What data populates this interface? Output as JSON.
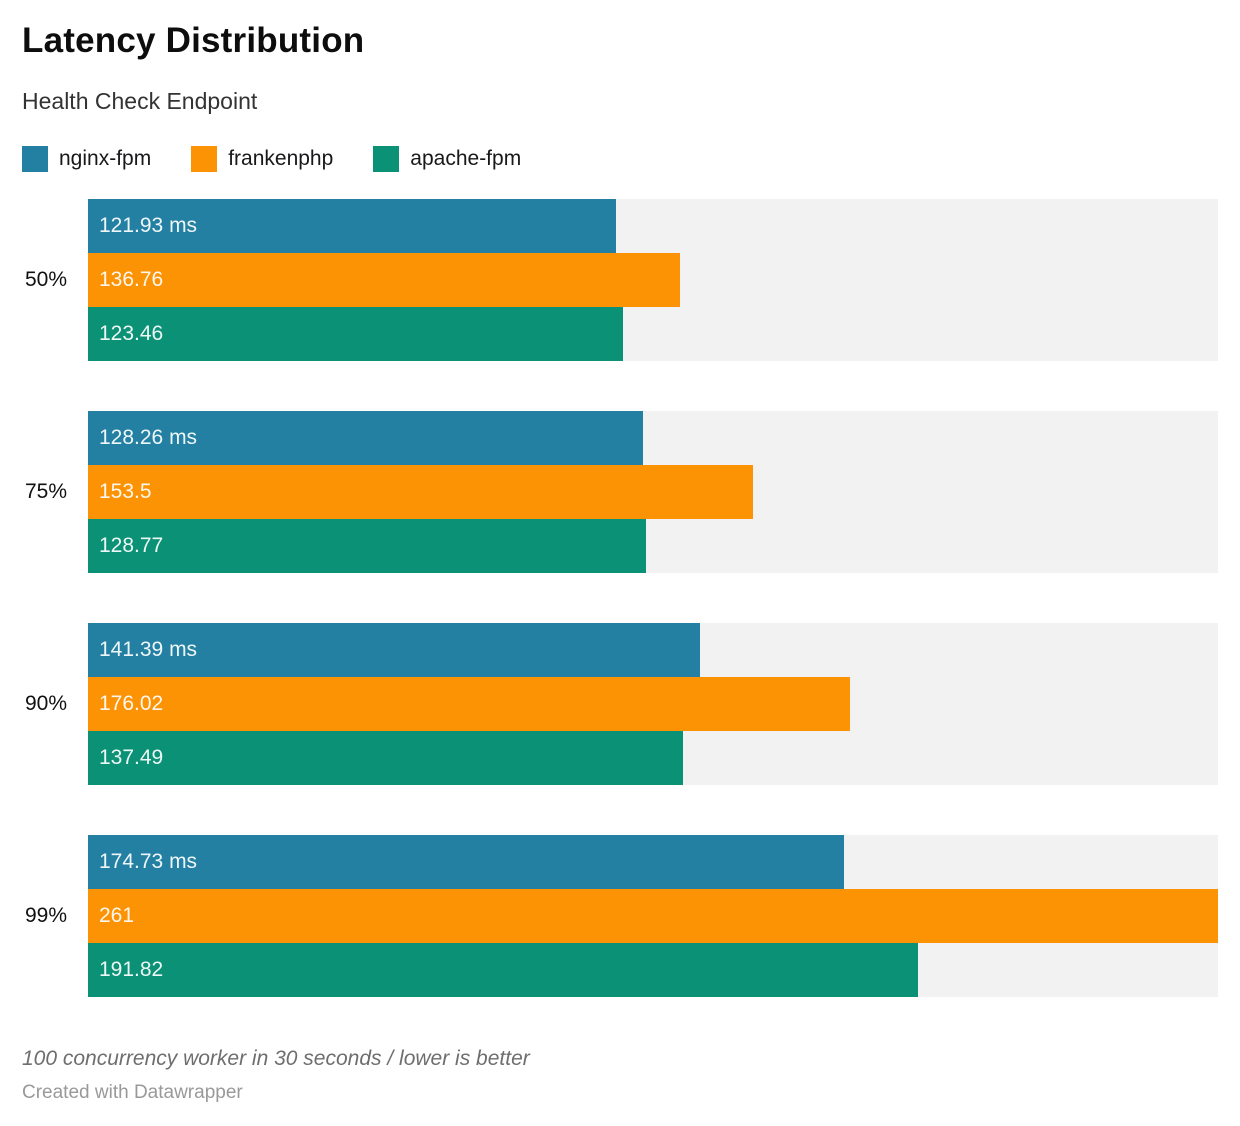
{
  "header": {
    "title": "Latency Distribution",
    "subtitle": "Health Check Endpoint"
  },
  "legend": [
    {
      "label": "nginx-fpm",
      "color": "#2380a2"
    },
    {
      "label": "frankenphp",
      "color": "#fb9304"
    },
    {
      "label": "apache-fpm",
      "color": "#0b9175"
    }
  ],
  "chart_data": {
    "type": "bar",
    "orientation": "horizontal",
    "title": "Latency Distribution",
    "subtitle": "Health Check Endpoint",
    "categories": [
      "50%",
      "75%",
      "90%",
      "99%"
    ],
    "series": [
      {
        "name": "nginx-fpm",
        "color": "#2380a2",
        "values": [
          121.93,
          128.26,
          141.39,
          174.73
        ],
        "labels": [
          "121.93 ms",
          "128.26 ms",
          "141.39 ms",
          "174.73 ms"
        ]
      },
      {
        "name": "frankenphp",
        "color": "#fb9304",
        "values": [
          136.76,
          153.5,
          176.02,
          261
        ],
        "labels": [
          "136.76",
          "153.5",
          "176.02",
          "261"
        ]
      },
      {
        "name": "apache-fpm",
        "color": "#0b9175",
        "values": [
          123.46,
          128.77,
          137.49,
          191.82
        ],
        "labels": [
          "123.46",
          "128.77",
          "137.49",
          "191.82"
        ]
      }
    ],
    "unit": "ms",
    "xlim": [
      0,
      261
    ],
    "grid": false,
    "legend_position": "top",
    "track_color": "#f2f2f2",
    "label_color": "#ffffff"
  },
  "footer": {
    "note": "100 concurrency worker in 30 seconds / lower is better",
    "attribution": "Created with Datawrapper"
  }
}
